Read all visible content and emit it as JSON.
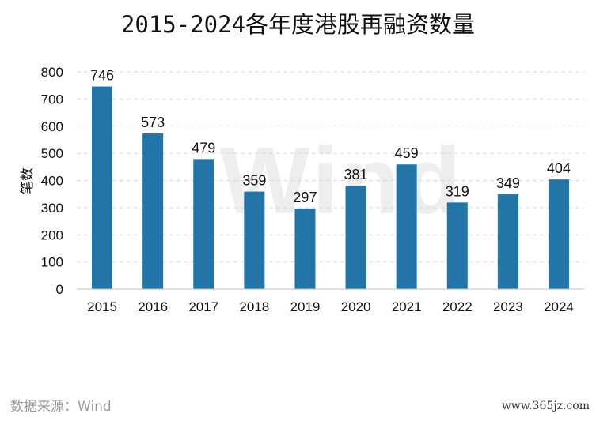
{
  "chart_data": {
    "type": "bar",
    "title": "2015-2024各年度港股再融资数量",
    "ylabel": "笔数",
    "xlabel": "",
    "categories": [
      "2015",
      "2016",
      "2017",
      "2018",
      "2019",
      "2020",
      "2021",
      "2022",
      "2023",
      "2024"
    ],
    "values": [
      746,
      573,
      479,
      359,
      297,
      381,
      459,
      319,
      349,
      404
    ],
    "ylim": [
      0,
      800
    ],
    "yticks": [
      0,
      100,
      200,
      300,
      400,
      500,
      600,
      700,
      800
    ],
    "grid": true,
    "bar_color": "#2275a6",
    "data_labels": true
  },
  "watermark": "Wind",
  "source": "数据来源：Wind",
  "site": "www.365jz.com"
}
